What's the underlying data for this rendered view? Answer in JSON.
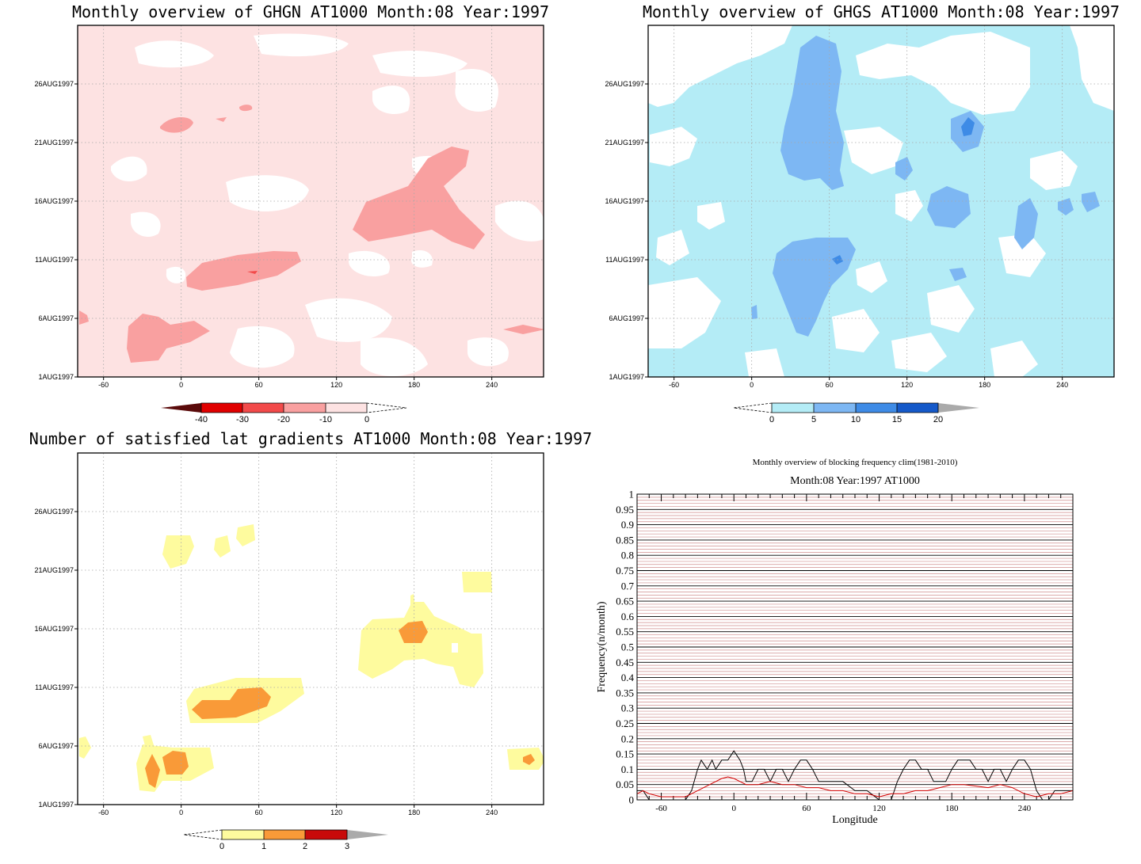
{
  "colors": {
    "ghgn": [
      "#5a0a0a",
      "#e00000",
      "#f24a4a",
      "#f9a0a0",
      "#fde2e2"
    ],
    "ghgs": [
      "#b4ecf6",
      "#7db7f3",
      "#3e8be6",
      "#1559c9",
      "#aaaaaa"
    ],
    "lat": [
      "#fefb9e",
      "#f99a38",
      "#c80a0a",
      "#aaaaaa"
    ],
    "clim": "#d40000",
    "observed": "#000000",
    "bg_lines": "#cf8e8e"
  },
  "chart_data": [
    {
      "type": "heatmap",
      "title": "Monthly overview of GHGN AT1000 Month:08 Year:1997",
      "x_ticks": [
        "-60",
        "0",
        "60",
        "120",
        "180",
        "240"
      ],
      "y_ticks": [
        "1AUG1997",
        "6AUG1997",
        "11AUG1997",
        "16AUG1997",
        "21AUG1997",
        "26AUG1997"
      ],
      "colorbar": [
        "-40",
        "-30",
        "-20",
        "-10",
        "0"
      ]
    },
    {
      "type": "heatmap",
      "title": "Monthly overview of GHGS AT1000 Month:08 Year:1997",
      "x_ticks": [
        "-60",
        "0",
        "60",
        "120",
        "180",
        "240"
      ],
      "y_ticks": [
        "1AUG1997",
        "6AUG1997",
        "11AUG1997",
        "16AUG1997",
        "21AUG1997",
        "26AUG1997"
      ],
      "colorbar": [
        "0",
        "5",
        "10",
        "15",
        "20"
      ]
    },
    {
      "type": "heatmap",
      "title": "Number of satisfied lat gradients AT1000 Month:08 Year:1997",
      "x_ticks": [
        "-60",
        "0",
        "60",
        "120",
        "180",
        "240"
      ],
      "y_ticks": [
        "1AUG1997",
        "6AUG1997",
        "11AUG1997",
        "16AUG1997",
        "21AUG1997",
        "26AUG1997"
      ],
      "colorbar": [
        "0",
        "1",
        "2",
        "3"
      ]
    },
    {
      "type": "line",
      "title": "Monthly overview of blocking frequency clim(1981-2010)",
      "subtitle": "Month:08 Year:1997  AT1000",
      "xlabel": "Longitude",
      "ylabel": "Frequency(n/month)",
      "x_ticks": [
        "-60",
        "0",
        "60",
        "120",
        "180",
        "240"
      ],
      "y_ticks": [
        "0",
        "0.05",
        "0.1",
        "0.15",
        "0.2",
        "0.25",
        "0.3",
        "0.35",
        "0.4",
        "0.45",
        "0.5",
        "0.55",
        "0.6",
        "0.65",
        "0.7",
        "0.75",
        "0.8",
        "0.85",
        "0.9",
        "0.95",
        "1"
      ],
      "xlim": [
        -80,
        280
      ],
      "ylim": [
        0,
        1
      ],
      "series": [
        {
          "color": "black",
          "x": [
            -80,
            -75,
            -70,
            -60,
            -50,
            -40,
            -35,
            -30,
            -27,
            -22,
            -18,
            -15,
            -10,
            -5,
            0,
            5,
            8,
            10,
            15,
            20,
            25,
            30,
            35,
            40,
            45,
            50,
            55,
            60,
            65,
            70,
            75,
            80,
            90,
            100,
            110,
            120,
            125,
            130,
            135,
            140,
            145,
            150,
            155,
            160,
            165,
            170,
            175,
            180,
            185,
            190,
            195,
            200,
            205,
            210,
            215,
            220,
            225,
            230,
            235,
            240,
            245,
            250,
            255,
            260,
            265,
            270,
            280
          ],
          "y": [
            0.03,
            0.03,
            0.0,
            0.0,
            0.0,
            0.0,
            0.03,
            0.1,
            0.13,
            0.1,
            0.13,
            0.1,
            0.13,
            0.13,
            0.16,
            0.13,
            0.1,
            0.06,
            0.06,
            0.1,
            0.1,
            0.06,
            0.1,
            0.1,
            0.06,
            0.1,
            0.13,
            0.13,
            0.1,
            0.06,
            0.06,
            0.06,
            0.06,
            0.03,
            0.03,
            0.0,
            0.0,
            0.0,
            0.06,
            0.1,
            0.13,
            0.13,
            0.1,
            0.1,
            0.06,
            0.06,
            0.06,
            0.1,
            0.13,
            0.13,
            0.13,
            0.1,
            0.1,
            0.06,
            0.1,
            0.1,
            0.06,
            0.1,
            0.13,
            0.13,
            0.1,
            0.03,
            0.0,
            0.0,
            0.03,
            0.03,
            0.03
          ]
        },
        {
          "color": "red",
          "x": [
            -80,
            -75,
            -70,
            -60,
            -50,
            -40,
            -30,
            -20,
            -10,
            -5,
            0,
            5,
            10,
            20,
            30,
            40,
            50,
            60,
            70,
            80,
            90,
            100,
            110,
            120,
            130,
            140,
            150,
            160,
            170,
            180,
            190,
            200,
            210,
            220,
            230,
            240,
            250,
            260,
            270,
            280
          ],
          "y": [
            0.02,
            0.03,
            0.02,
            0.01,
            0.01,
            0.01,
            0.03,
            0.05,
            0.07,
            0.075,
            0.07,
            0.06,
            0.05,
            0.05,
            0.06,
            0.05,
            0.05,
            0.04,
            0.04,
            0.03,
            0.03,
            0.02,
            0.02,
            0.01,
            0.02,
            0.02,
            0.03,
            0.03,
            0.04,
            0.05,
            0.05,
            0.045,
            0.04,
            0.05,
            0.04,
            0.02,
            0.01,
            0.02,
            0.02,
            0.03
          ]
        }
      ]
    }
  ]
}
